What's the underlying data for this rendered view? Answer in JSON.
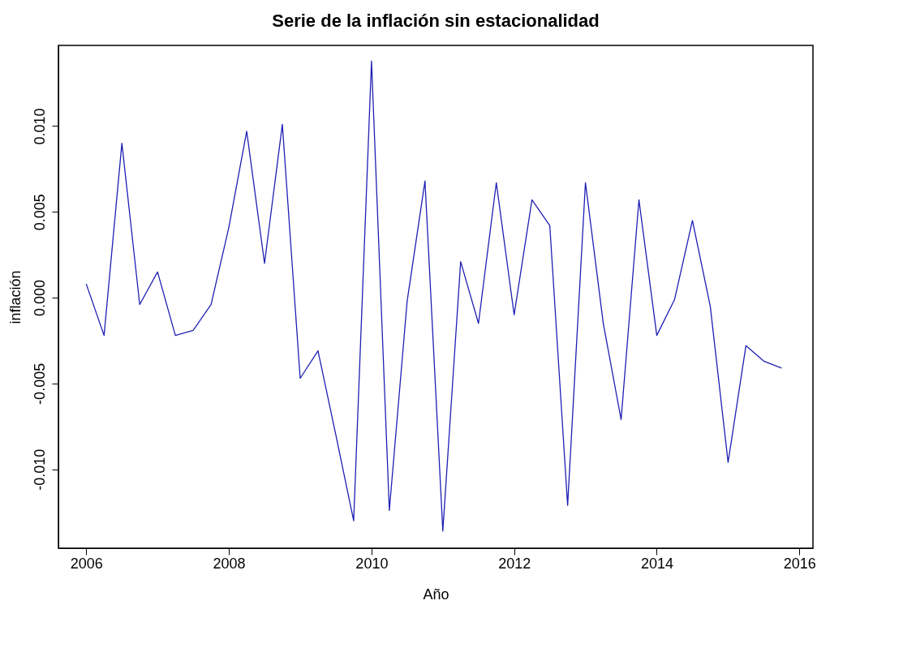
{
  "chart_data": {
    "type": "line",
    "title": "Serie de la inflación sin estacionalidad",
    "xlabel": "Año",
    "ylabel": "inflación",
    "x": [
      2006.0,
      2006.25,
      2006.5,
      2006.75,
      2007.0,
      2007.25,
      2007.5,
      2007.75,
      2008.0,
      2008.25,
      2008.5,
      2008.75,
      2009.0,
      2009.25,
      2009.5,
      2009.75,
      2010.0,
      2010.25,
      2010.5,
      2010.75,
      2011.0,
      2011.25,
      2011.5,
      2011.75,
      2012.0,
      2012.25,
      2012.5,
      2012.75,
      2013.0,
      2013.25,
      2013.5,
      2013.75,
      2014.0,
      2014.25,
      2014.5,
      2014.75,
      2015.0,
      2015.25,
      2015.5,
      2015.75
    ],
    "series": [
      {
        "color": "#1f1fb4",
        "values": [
          0.0008,
          -0.0022,
          0.009,
          -0.0004,
          0.0015,
          -0.0022,
          -0.0019,
          -0.0004,
          0.0041,
          0.0097,
          0.002,
          0.0101,
          -0.0047,
          -0.0031,
          -0.008,
          -0.013,
          0.0138,
          -0.0124,
          -0.0002,
          0.0068,
          -0.0136,
          0.0021,
          -0.0015,
          0.0067,
          -0.001,
          0.0057,
          0.0042,
          -0.0121,
          0.0067,
          -0.0015,
          -0.0071,
          0.0057,
          -0.0022,
          -0.0001,
          0.0045,
          -0.0005,
          -0.0096,
          -0.0028,
          -0.0037,
          -0.0041
        ]
      }
    ],
    "xlim": [
      2005.61,
      2016.19
    ],
    "xticks": [
      2006,
      2008,
      2010,
      2012,
      2014,
      2016
    ],
    "ylim": [
      -0.0146,
      0.0147
    ],
    "yticks": [
      {
        "value": -0.01,
        "label": "-0.010"
      },
      -0.005,
      {
        "value": 0,
        "label": "0.000"
      },
      0.005,
      {
        "value": 0.01,
        "label": "0.010"
      }
    ],
    "grid": false,
    "marker": "none",
    "line_style": "solid"
  }
}
